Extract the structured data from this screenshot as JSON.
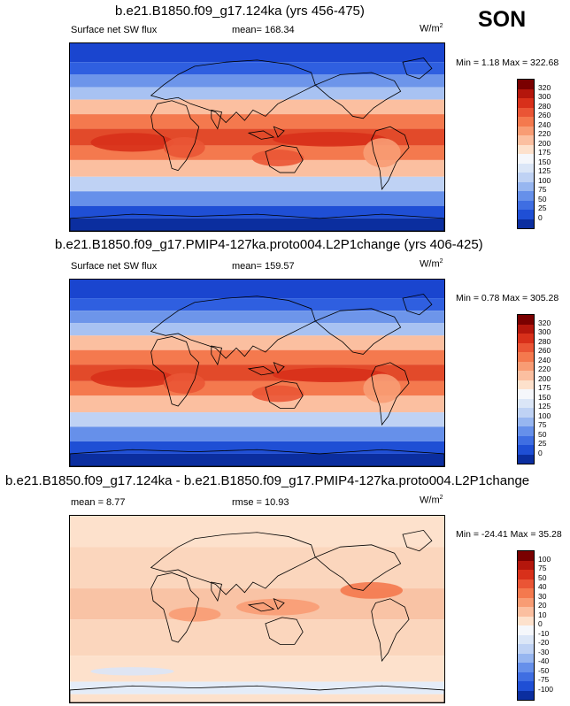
{
  "season": "SON",
  "panels": [
    {
      "title": "b.e21.B1850.f09_g17.124ka (yrs 456-475)",
      "left_label": "Surface net SW flux",
      "center_label": "mean= 168.34",
      "units": "W/m",
      "units_sup": "2",
      "minmax": "Min =   1.18 Max = 322.68",
      "colorbar": {
        "labels": [
          "320",
          "300",
          "280",
          "260",
          "240",
          "220",
          "200",
          "175",
          "150",
          "125",
          "100",
          "75",
          "50",
          "25",
          "0"
        ],
        "colors": [
          "#7a0000",
          "#b4160c",
          "#d8301a",
          "#ea5535",
          "#f4794e",
          "#f89c74",
          "#fbbfa0",
          "#fde1cc",
          "#f5f7fb",
          "#dbe6f7",
          "#bfd2f4",
          "#97b6f0",
          "#6690ea",
          "#3f6ee2",
          "#1f4fd5",
          "#0b2e9f"
        ]
      },
      "map_style": "sw"
    },
    {
      "title": "b.e21.B1850.f09_g17.PMIP4-127ka.proto004.L2P1change (yrs 406-425)",
      "left_label": "Surface net SW flux",
      "center_label": "mean= 159.57",
      "units": "W/m",
      "units_sup": "2",
      "minmax": "Min =   0.78 Max = 305.28",
      "colorbar": {
        "labels": [
          "320",
          "300",
          "280",
          "260",
          "240",
          "220",
          "200",
          "175",
          "150",
          "125",
          "100",
          "75",
          "50",
          "25",
          "0"
        ],
        "colors": [
          "#7a0000",
          "#b4160c",
          "#d8301a",
          "#ea5535",
          "#f4794e",
          "#f89c74",
          "#fbbfa0",
          "#fde1cc",
          "#f5f7fb",
          "#dbe6f7",
          "#bfd2f4",
          "#97b6f0",
          "#6690ea",
          "#3f6ee2",
          "#1f4fd5",
          "#0b2e9f"
        ]
      },
      "map_style": "sw"
    },
    {
      "title": "b.e21.B1850.f09_g17.124ka - b.e21.B1850.f09_g17.PMIP4-127ka.proto004.L2P1change",
      "left_label": "mean =   8.77",
      "center_label": "rmse =  10.93",
      "units": "W/m",
      "units_sup": "2",
      "minmax": "Min = -24.41 Max =  35.28",
      "colorbar": {
        "labels": [
          "100",
          "75",
          "50",
          "40",
          "30",
          "20",
          "10",
          "0",
          "-10",
          "-20",
          "-30",
          "-40",
          "-50",
          "-75",
          "-100"
        ],
        "colors": [
          "#7a0000",
          "#b4160c",
          "#d8301a",
          "#ea5535",
          "#f4794e",
          "#f89c74",
          "#fbbfa0",
          "#fde1cc",
          "#f5f7fb",
          "#dbe6f7",
          "#bfd2f4",
          "#97b6f0",
          "#6690ea",
          "#3f6ee2",
          "#1f4fd5",
          "#0b2e9f"
        ]
      },
      "map_style": "diff"
    }
  ]
}
